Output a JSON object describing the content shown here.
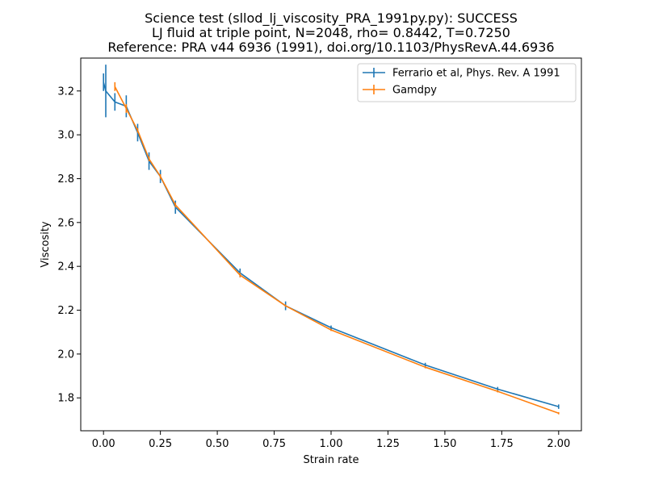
{
  "chart_data": {
    "type": "line",
    "title_lines": [
      "Science test (sllod_lj_viscosity_PRA_1991py.py): SUCCESS",
      "LJ fluid at triple point, N=2048, rho= 0.8442, T=0.7250",
      "Reference: PRA v44 6936 (1991), doi.org/10.1103/PhysRevA.44.6936"
    ],
    "xlabel": "Strain rate",
    "ylabel": "Viscosity",
    "xlim": [
      -0.1,
      2.1
    ],
    "ylim": [
      1.65,
      3.35
    ],
    "xticks": [
      0.0,
      0.25,
      0.5,
      0.75,
      1.0,
      1.25,
      1.5,
      1.75,
      2.0
    ],
    "xtick_labels": [
      "0.00",
      "0.25",
      "0.50",
      "0.75",
      "1.00",
      "1.25",
      "1.50",
      "1.75",
      "2.00"
    ],
    "yticks": [
      1.8,
      2.0,
      2.2,
      2.4,
      2.6,
      2.8,
      3.0,
      3.2
    ],
    "ytick_labels": [
      "1.8",
      "2.0",
      "2.2",
      "2.4",
      "2.6",
      "2.8",
      "3.0",
      "3.2"
    ],
    "grid": false,
    "legend_position": "top-right",
    "series": [
      {
        "name": "Ferrario et al, Phys. Rev. A 1991",
        "color": "#1f77b4",
        "x": [
          0.0,
          0.01,
          0.05,
          0.1,
          0.15,
          0.2,
          0.25,
          0.316,
          0.6,
          0.8,
          1.0,
          1.414,
          1.732,
          2.0
        ],
        "y": [
          3.24,
          3.2,
          3.15,
          3.13,
          3.01,
          2.88,
          2.81,
          2.67,
          2.37,
          2.22,
          2.12,
          1.95,
          1.84,
          1.76
        ],
        "err": [
          0.04,
          0.12,
          0.04,
          0.05,
          0.04,
          0.04,
          0.03,
          0.03,
          0.02,
          0.02,
          0.01,
          0.01,
          0.01,
          0.01
        ]
      },
      {
        "name": "Gamdpy",
        "color": "#ff7f0e",
        "x": [
          0.05,
          0.1,
          0.15,
          0.2,
          0.25,
          0.316,
          0.6,
          0.8,
          1.0,
          1.414,
          1.732,
          2.0
        ],
        "y": [
          3.22,
          3.12,
          3.02,
          2.89,
          2.81,
          2.68,
          2.36,
          2.22,
          2.11,
          1.94,
          1.83,
          1.73
        ],
        "err": [
          0.02,
          0.02,
          0.01,
          0.01,
          0.01,
          0.01,
          0.01,
          0.005,
          0.005,
          0.005,
          0.005,
          0.005
        ]
      }
    ]
  }
}
